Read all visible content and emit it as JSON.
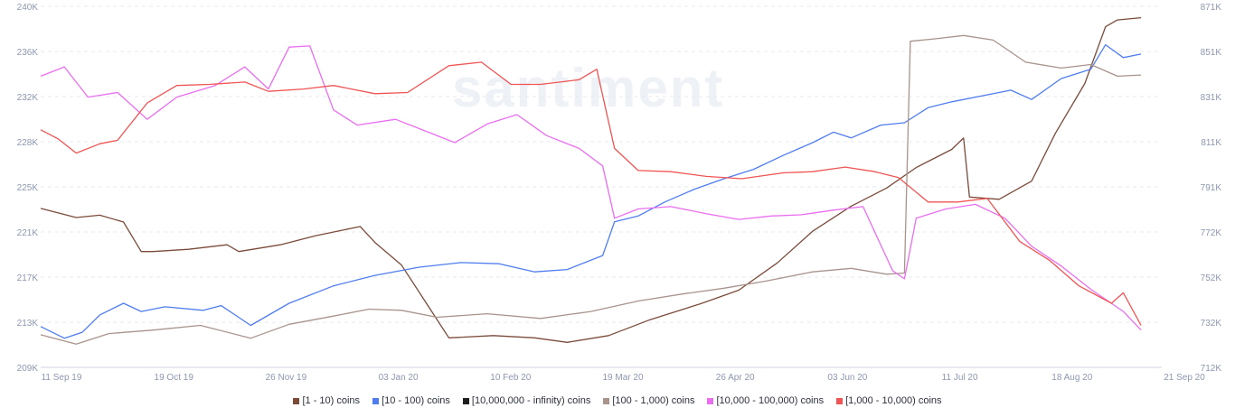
{
  "chart_data": {
    "type": "line",
    "watermark": "santiment",
    "x_ticks": [
      "11 Sep 19",
      "19 Oct 19",
      "26 Nov 19",
      "03 Jan 20",
      "10 Feb 20",
      "19 Mar 20",
      "26 Apr 20",
      "03 Jun 20",
      "11 Jul 20",
      "18 Aug 20",
      "21 Sep 20"
    ],
    "y_left": {
      "ticks": [
        "240K",
        "236K",
        "232K",
        "228K",
        "225K",
        "221K",
        "217K",
        "213K",
        "209K"
      ],
      "range": [
        209000,
        240000
      ]
    },
    "y_right": {
      "ticks": [
        "871K",
        "851K",
        "831K",
        "811K",
        "791K",
        "772K",
        "752K",
        "732K",
        "712K"
      ],
      "range": [
        712000,
        871000
      ]
    },
    "x_range": [
      "2019-09-08",
      "2020-09-21"
    ],
    "grid": true,
    "legend_position": "bottom",
    "series": [
      {
        "name": "[1 - 10) coins",
        "color": "#7b4b3a",
        "axis": "right",
        "points": [
          [
            "2019-09-08",
            782000
          ],
          [
            "2019-09-20",
            778000
          ],
          [
            "2019-09-28",
            779000
          ],
          [
            "2019-10-06",
            776000
          ],
          [
            "2019-10-12",
            763000
          ],
          [
            "2019-10-16",
            763000
          ],
          [
            "2019-10-28",
            764000
          ],
          [
            "2019-11-10",
            766000
          ],
          [
            "2019-11-14",
            763000
          ],
          [
            "2019-11-28",
            766000
          ],
          [
            "2019-12-10",
            770000
          ],
          [
            "2019-12-25",
            774000
          ],
          [
            "2019-12-30",
            767000
          ],
          [
            "2020-01-08",
            757000
          ],
          [
            "2020-01-18",
            737000
          ],
          [
            "2020-01-24",
            725000
          ],
          [
            "2020-02-08",
            726000
          ],
          [
            "2020-02-22",
            725000
          ],
          [
            "2020-03-04",
            723000
          ],
          [
            "2020-03-18",
            726000
          ],
          [
            "2020-04-01",
            733000
          ],
          [
            "2020-04-18",
            740000
          ],
          [
            "2020-05-01",
            746000
          ],
          [
            "2020-05-14",
            758000
          ],
          [
            "2020-05-26",
            772000
          ],
          [
            "2020-06-08",
            783000
          ],
          [
            "2020-06-20",
            791000
          ],
          [
            "2020-06-30",
            800000
          ],
          [
            "2020-07-12",
            808000
          ],
          [
            "2020-07-16",
            813000
          ],
          [
            "2020-07-18",
            787000
          ],
          [
            "2020-07-28",
            786000
          ],
          [
            "2020-08-08",
            794000
          ],
          [
            "2020-08-16",
            815000
          ],
          [
            "2020-08-26",
            837000
          ],
          [
            "2020-09-02",
            862000
          ],
          [
            "2020-09-06",
            865000
          ],
          [
            "2020-09-14",
            866000
          ]
        ]
      },
      {
        "name": "[10 - 100) coins",
        "color": "#4f7df0",
        "axis": "left",
        "points": [
          [
            "2019-09-08",
            212500
          ],
          [
            "2019-09-16",
            211500
          ],
          [
            "2019-09-22",
            212000
          ],
          [
            "2019-09-28",
            213500
          ],
          [
            "2019-10-06",
            214500
          ],
          [
            "2019-10-12",
            213800
          ],
          [
            "2019-10-20",
            214200
          ],
          [
            "2019-11-02",
            213900
          ],
          [
            "2019-11-08",
            214300
          ],
          [
            "2019-11-18",
            212600
          ],
          [
            "2019-12-01",
            214500
          ],
          [
            "2019-12-16",
            216000
          ],
          [
            "2019-12-30",
            216900
          ],
          [
            "2020-01-14",
            217600
          ],
          [
            "2020-01-28",
            218000
          ],
          [
            "2020-02-10",
            217900
          ],
          [
            "2020-02-22",
            217200
          ],
          [
            "2020-03-04",
            217400
          ],
          [
            "2020-03-16",
            218600
          ],
          [
            "2020-03-20",
            221500
          ],
          [
            "2020-03-28",
            222000
          ],
          [
            "2020-04-06",
            223200
          ],
          [
            "2020-04-16",
            224300
          ],
          [
            "2020-04-26",
            225200
          ],
          [
            "2020-05-06",
            226000
          ],
          [
            "2020-05-16",
            227200
          ],
          [
            "2020-05-26",
            228300
          ],
          [
            "2020-06-02",
            229200
          ],
          [
            "2020-06-08",
            228700
          ],
          [
            "2020-06-18",
            229800
          ],
          [
            "2020-06-26",
            230000
          ],
          [
            "2020-07-04",
            231300
          ],
          [
            "2020-07-12",
            231800
          ],
          [
            "2020-07-22",
            232300
          ],
          [
            "2020-08-01",
            232800
          ],
          [
            "2020-08-08",
            232000
          ],
          [
            "2020-08-18",
            233800
          ],
          [
            "2020-08-28",
            234600
          ],
          [
            "2020-09-02",
            236700
          ],
          [
            "2020-09-08",
            235600
          ],
          [
            "2020-09-14",
            235900
          ]
        ]
      },
      {
        "name": "[10,000,000 - infinity) coins",
        "color": "#1d1d1d",
        "axis": "left",
        "points": []
      },
      {
        "name": "[100 - 1,000) coins",
        "color": "#a8948c",
        "axis": "left",
        "points": [
          [
            "2019-09-08",
            211800
          ],
          [
            "2019-09-20",
            211000
          ],
          [
            "2019-10-01",
            211900
          ],
          [
            "2019-10-16",
            212200
          ],
          [
            "2019-11-01",
            212600
          ],
          [
            "2019-11-18",
            211500
          ],
          [
            "2019-12-01",
            212700
          ],
          [
            "2019-12-16",
            213400
          ],
          [
            "2019-12-28",
            214000
          ],
          [
            "2020-01-08",
            213900
          ],
          [
            "2020-01-20",
            213300
          ],
          [
            "2020-02-06",
            213600
          ],
          [
            "2020-02-24",
            213200
          ],
          [
            "2020-03-12",
            213800
          ],
          [
            "2020-03-28",
            214700
          ],
          [
            "2020-04-12",
            215300
          ],
          [
            "2020-04-26",
            215800
          ],
          [
            "2020-05-10",
            216400
          ],
          [
            "2020-05-26",
            217200
          ],
          [
            "2020-06-08",
            217500
          ],
          [
            "2020-06-20",
            217000
          ],
          [
            "2020-06-26",
            217100
          ],
          [
            "2020-06-28",
            237000
          ],
          [
            "2020-07-06",
            237200
          ],
          [
            "2020-07-16",
            237500
          ],
          [
            "2020-07-26",
            237100
          ],
          [
            "2020-08-06",
            235200
          ],
          [
            "2020-08-18",
            234700
          ],
          [
            "2020-08-28",
            235000
          ],
          [
            "2020-09-06",
            234000
          ],
          [
            "2020-09-14",
            234100
          ]
        ]
      },
      {
        "name": "[10,000 - 100,000) coins",
        "color": "#ea6ef0",
        "axis": "left",
        "points": [
          [
            "2019-09-08",
            234000
          ],
          [
            "2019-09-16",
            234800
          ],
          [
            "2019-09-24",
            232200
          ],
          [
            "2019-10-04",
            232600
          ],
          [
            "2019-10-14",
            230300
          ],
          [
            "2019-10-24",
            232200
          ],
          [
            "2019-11-06",
            233200
          ],
          [
            "2019-11-16",
            234800
          ],
          [
            "2019-11-24",
            232900
          ],
          [
            "2019-12-01",
            236500
          ],
          [
            "2019-12-08",
            236600
          ],
          [
            "2019-12-16",
            231100
          ],
          [
            "2019-12-24",
            229800
          ],
          [
            "2020-01-06",
            230300
          ],
          [
            "2020-01-14",
            229500
          ],
          [
            "2020-01-26",
            228300
          ],
          [
            "2020-02-06",
            229900
          ],
          [
            "2020-02-16",
            230700
          ],
          [
            "2020-02-26",
            228900
          ],
          [
            "2020-03-08",
            227800
          ],
          [
            "2020-03-16",
            226300
          ],
          [
            "2020-03-20",
            221800
          ],
          [
            "2020-03-28",
            222600
          ],
          [
            "2020-04-08",
            222800
          ],
          [
            "2020-04-20",
            222200
          ],
          [
            "2020-05-01",
            221700
          ],
          [
            "2020-05-12",
            222000
          ],
          [
            "2020-05-22",
            222100
          ],
          [
            "2020-06-02",
            222500
          ],
          [
            "2020-06-12",
            222800
          ],
          [
            "2020-06-22",
            217300
          ],
          [
            "2020-06-26",
            216600
          ],
          [
            "2020-06-30",
            221800
          ],
          [
            "2020-07-10",
            222600
          ],
          [
            "2020-07-20",
            223000
          ],
          [
            "2020-07-30",
            221800
          ],
          [
            "2020-08-08",
            219400
          ],
          [
            "2020-08-18",
            217700
          ],
          [
            "2020-08-28",
            215700
          ],
          [
            "2020-09-08",
            213800
          ],
          [
            "2020-09-14",
            212200
          ]
        ]
      },
      {
        "name": "[1,000 - 10,000) coins",
        "color": "#f05454",
        "axis": "left",
        "points": [
          [
            "2019-09-08",
            229400
          ],
          [
            "2019-09-14",
            228600
          ],
          [
            "2019-09-20",
            227400
          ],
          [
            "2019-09-28",
            228200
          ],
          [
            "2019-10-04",
            228500
          ],
          [
            "2019-10-14",
            231700
          ],
          [
            "2019-10-24",
            233200
          ],
          [
            "2019-11-04",
            233300
          ],
          [
            "2019-11-16",
            233500
          ],
          [
            "2019-11-24",
            232700
          ],
          [
            "2019-12-06",
            232900
          ],
          [
            "2019-12-16",
            233200
          ],
          [
            "2019-12-30",
            232500
          ],
          [
            "2020-01-10",
            232600
          ],
          [
            "2020-01-24",
            234900
          ],
          [
            "2020-02-04",
            235200
          ],
          [
            "2020-02-14",
            233300
          ],
          [
            "2020-02-24",
            233300
          ],
          [
            "2020-03-08",
            233700
          ],
          [
            "2020-03-14",
            234600
          ],
          [
            "2020-03-20",
            227800
          ],
          [
            "2020-03-28",
            225900
          ],
          [
            "2020-04-08",
            225800
          ],
          [
            "2020-04-20",
            225400
          ],
          [
            "2020-05-02",
            225200
          ],
          [
            "2020-05-16",
            225700
          ],
          [
            "2020-05-26",
            225800
          ],
          [
            "2020-06-06",
            226200
          ],
          [
            "2020-06-16",
            225800
          ],
          [
            "2020-06-24",
            225300
          ],
          [
            "2020-07-04",
            223200
          ],
          [
            "2020-07-14",
            223200
          ],
          [
            "2020-07-24",
            223500
          ],
          [
            "2020-08-04",
            219800
          ],
          [
            "2020-08-14",
            218200
          ],
          [
            "2020-08-24",
            216000
          ],
          [
            "2020-09-04",
            214500
          ],
          [
            "2020-09-08",
            215400
          ],
          [
            "2020-09-14",
            212600
          ]
        ]
      }
    ]
  }
}
